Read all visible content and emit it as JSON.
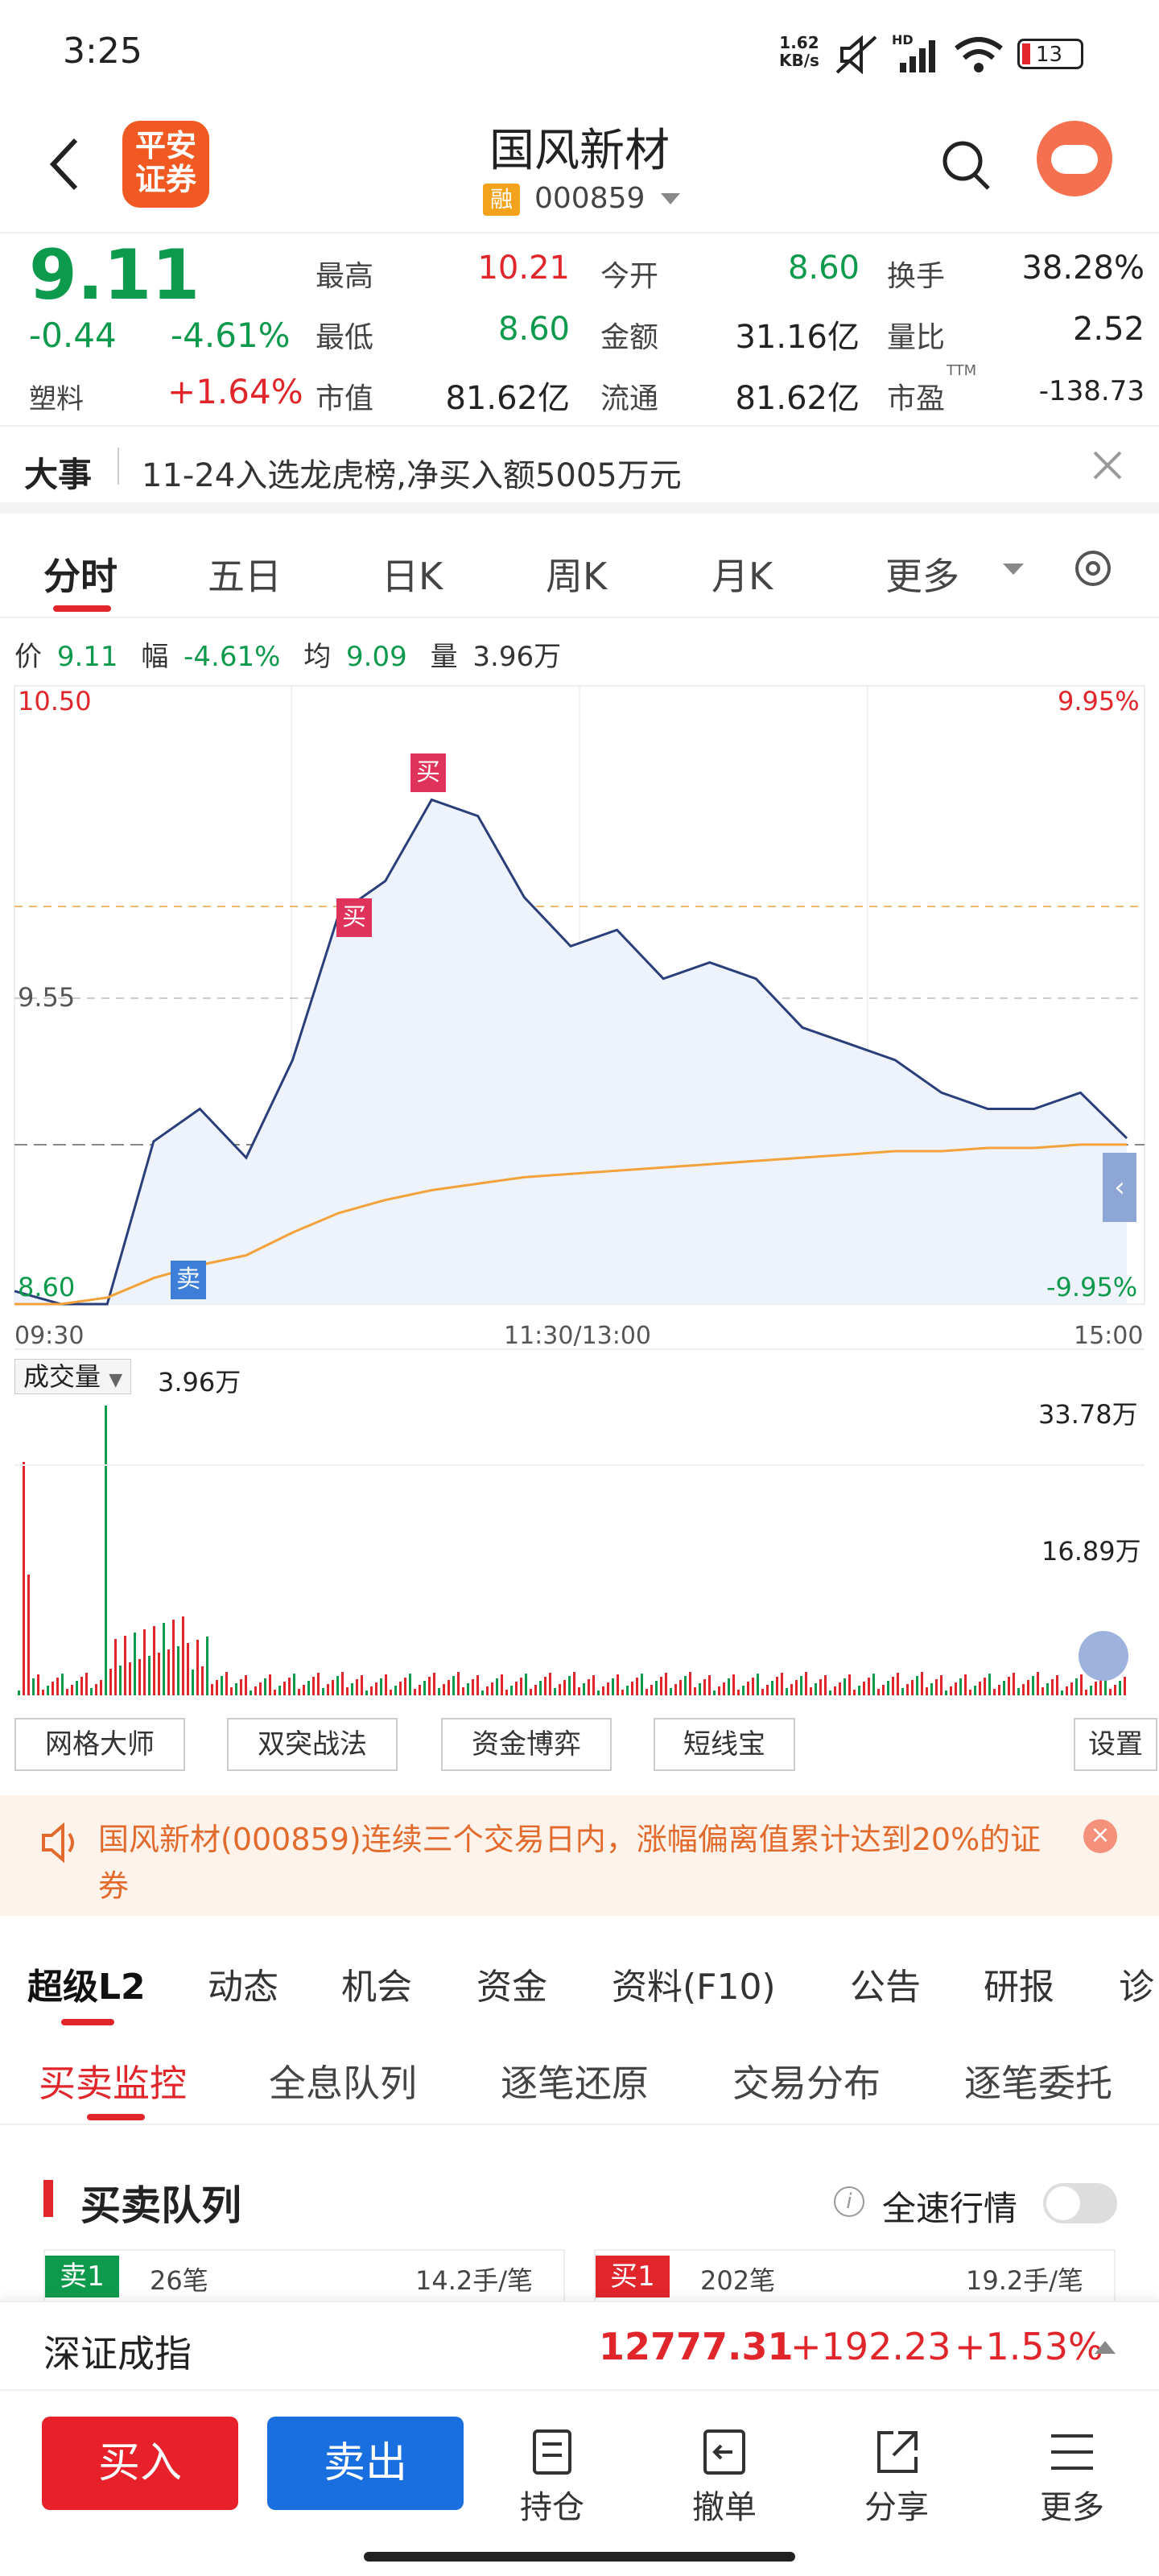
{
  "status": {
    "time": "3:25",
    "net_rate": "1.62",
    "net_unit": "KB/s",
    "battery": "13",
    "hd": "HD"
  },
  "header": {
    "logo_line1": "平安",
    "logo_line2": "证券",
    "title": "国风新材",
    "badge": "融",
    "code": "000859"
  },
  "quote": {
    "price": "9.11",
    "change": "-0.44",
    "change_pct": "-4.61%",
    "sector": "塑料",
    "sector_pct": "+1.64%",
    "high_label": "最高",
    "high": "10.21",
    "open_label": "今开",
    "open": "8.60",
    "turnover_label": "换手",
    "turnover": "38.28%",
    "low_label": "最低",
    "low": "8.60",
    "amount_label": "金额",
    "amount": "31.16亿",
    "volratio_label": "量比",
    "volratio": "2.52",
    "mktcap_label": "市值",
    "mktcap": "81.62亿",
    "float_label": "流通",
    "float": "81.62亿",
    "pe_label": "市盈",
    "pe_sup": "TTM",
    "pe": "-138.73"
  },
  "event": {
    "label": "大事",
    "text": "11-24入选龙虎榜,净买入额5005万元"
  },
  "chart_tabs": [
    "分时",
    "五日",
    "日K",
    "周K",
    "月K",
    "更多"
  ],
  "chart_info": {
    "price_label": "价",
    "price": "9.11",
    "range_label": "幅",
    "range": "-4.61%",
    "avg_label": "均",
    "avg": "9.09",
    "vol_label": "量",
    "vol": "3.96万"
  },
  "chart_labels": {
    "top_price": "10.50",
    "mid_price": "9.55",
    "bot_price": "8.60",
    "top_pct": "9.95%",
    "bot_pct": "-9.95%",
    "t_start": "09:30",
    "t_mid": "11:30/13:00",
    "t_end": "15:00",
    "buy": "买",
    "sell": "卖"
  },
  "volume": {
    "label": "成交量",
    "value": "3.96万",
    "max": "33.78万",
    "mid": "16.89万"
  },
  "tools": [
    "网格大师",
    "双突战法",
    "资金博弈",
    "短线宝",
    "设置"
  ],
  "notice": {
    "text": "国风新材(000859)连续三个交易日内，涨幅偏离值累计达到20%的证券"
  },
  "info_tabs": [
    "超级L2",
    "动态",
    "机会",
    "资金",
    "资料(F10)",
    "公告",
    "研报",
    "诊"
  ],
  "sub_tabs": [
    "买卖监控",
    "全息队列",
    "逐笔还原",
    "交易分布",
    "逐笔委托"
  ],
  "queue": {
    "title": "买卖队列",
    "toggle_label": "全速行情",
    "sell_tag": "卖1",
    "sell_count": "26笔",
    "sell_avg": "14.2手/笔",
    "buy_tag": "买1",
    "buy_count": "202笔",
    "buy_avg": "19.2手/笔"
  },
  "index": {
    "name": "深证成指",
    "value": "12777.31",
    "change": "+192.23",
    "pct": "+1.53%"
  },
  "bottom": {
    "buy": "买入",
    "sell": "卖出",
    "hold": "持仓",
    "cancel": "撤单",
    "share": "分享",
    "more": "更多"
  },
  "chart_data": {
    "type": "line",
    "x": [
      "09:30",
      "09:40",
      "09:50",
      "10:00",
      "10:10",
      "10:20",
      "10:30",
      "10:40",
      "10:50",
      "11:00",
      "11:10",
      "11:20",
      "11:30",
      "13:10",
      "13:20",
      "13:30",
      "13:40",
      "13:50",
      "14:00",
      "14:10",
      "14:20",
      "14:30",
      "14:40",
      "14:50",
      "15:00"
    ],
    "series": [
      {
        "values": [
          8.64,
          8.6,
          8.6,
          9.1,
          9.2,
          9.05,
          9.35,
          9.8,
          9.9,
          10.15,
          10.1,
          9.85,
          9.7,
          9.75,
          9.6,
          9.65,
          9.6,
          9.45,
          9.4,
          9.35,
          9.25,
          9.2,
          9.2,
          9.25,
          9.11
        ]
      },
      {
        "values": [
          8.6,
          8.6,
          8.62,
          8.68,
          8.72,
          8.75,
          8.82,
          8.88,
          8.92,
          8.95,
          8.97,
          8.99,
          9.0,
          9.01,
          9.02,
          9.03,
          9.04,
          9.05,
          9.06,
          9.07,
          9.07,
          9.08,
          9.08,
          9.09,
          9.09
        ]
      }
    ],
    "ylim": [
      8.6,
      10.5
    ],
    "volume_ylim": [
      0,
      33.78
    ]
  }
}
